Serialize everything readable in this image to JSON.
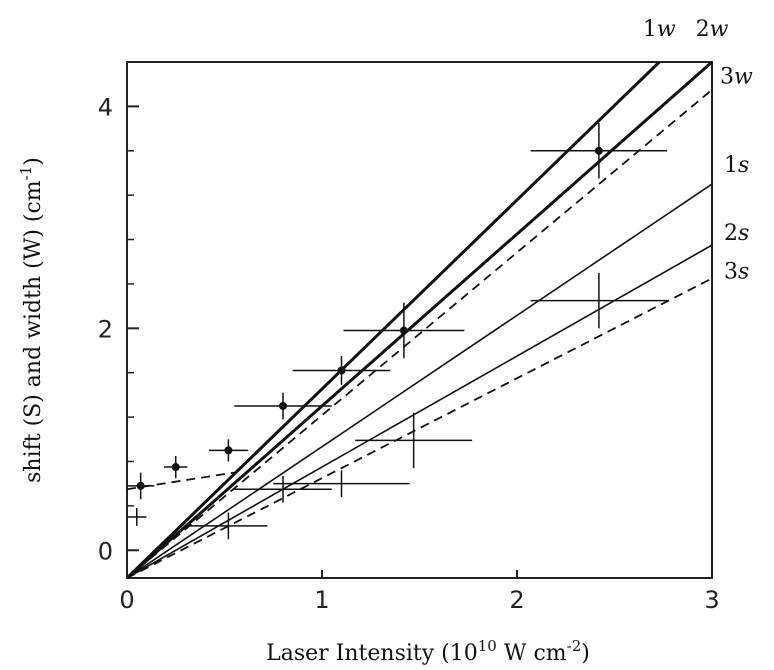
{
  "chart_data": {
    "type": "line",
    "xlabel": "Laser Intensity (10",
    "xlabel_exp": "10",
    "xlabel_tail": " W cm",
    "xlabel_tail_exp": "-2",
    "xlabel_close": ")",
    "ylabel": "shift  (S) and width (W)  (cm",
    "ylabel_exp": "-1",
    "ylabel_close": ")",
    "xlim": [
      0,
      3
    ],
    "ylim": [
      -0.25,
      4.4
    ],
    "x_ticks": [
      0,
      1,
      2,
      3
    ],
    "x_tick_labels": [
      "0",
      "1",
      "2",
      "3"
    ],
    "y_ticks": [
      0,
      2,
      4
    ],
    "y_tick_labels": [
      "0",
      "2",
      "4"
    ],
    "y_minor_ticks": [
      0.4,
      0.8,
      1.2,
      1.6,
      2.4,
      2.8,
      3.2,
      3.6
    ],
    "grid": false,
    "series": [
      {
        "name": "1w",
        "style": "thick-solid",
        "x": [
          0,
          2.73
        ],
        "y": [
          -0.25,
          4.4
        ]
      },
      {
        "name": "2w",
        "style": "thick-solid",
        "x": [
          0,
          3.0
        ],
        "y": [
          -0.25,
          4.4
        ]
      },
      {
        "name": "3w",
        "style": "dashed",
        "x": [
          0,
          3.0
        ],
        "y": [
          -0.25,
          4.15
        ]
      },
      {
        "name": "1s",
        "style": "thin-solid",
        "x": [
          0,
          3.0
        ],
        "y": [
          -0.25,
          3.3
        ]
      },
      {
        "name": "2s",
        "style": "thin-solid",
        "x": [
          0,
          3.0
        ],
        "y": [
          -0.25,
          2.75
        ]
      },
      {
        "name": "3s",
        "style": "dashed",
        "x": [
          0,
          3.0
        ],
        "y": [
          -0.25,
          2.45
        ]
      },
      {
        "name": "",
        "style": "dashed",
        "x": [
          0,
          0.55
        ],
        "y": [
          0.55,
          0.7
        ]
      }
    ],
    "points": [
      {
        "x": 0.07,
        "y": 0.58,
        "xerr": 0.07,
        "yerr": 0.12,
        "filled": true
      },
      {
        "x": 0.25,
        "y": 0.75,
        "xerr": 0.06,
        "yerr": 0.1,
        "filled": true
      },
      {
        "x": 0.52,
        "y": 0.9,
        "xerr": 0.1,
        "yerr": 0.1,
        "filled": true
      },
      {
        "x": 0.8,
        "y": 1.3,
        "xerr": 0.25,
        "yerr": 0.12,
        "filled": true
      },
      {
        "x": 1.1,
        "y": 1.62,
        "xerr": 0.25,
        "yerr": 0.13,
        "filled": true
      },
      {
        "x": 1.42,
        "y": 1.98,
        "xerr": 0.31,
        "yerr": 0.25,
        "filled": true
      },
      {
        "x": 2.42,
        "y": 3.6,
        "xerr": 0.35,
        "yerr": 0.25,
        "filled": true
      },
      {
        "x": 0.52,
        "y": 0.22,
        "xerr": 0.2,
        "yerr": 0.12,
        "filled": false
      },
      {
        "x": 0.8,
        "y": 0.55,
        "xerr": 0.25,
        "yerr": 0.12,
        "filled": false
      },
      {
        "x": 1.1,
        "y": 0.6,
        "xerr": 0.35,
        "yerr": 0.12,
        "filled": false
      },
      {
        "x": 1.47,
        "y": 0.99,
        "xerr": 0.3,
        "yerr": 0.25,
        "filled": false
      },
      {
        "x": 2.42,
        "y": 2.25,
        "xerr": 0.35,
        "yerr": 0.25,
        "filled": false
      },
      {
        "x": 0.05,
        "y": 0.3,
        "xerr": 0.05,
        "yerr": 0.08,
        "filled": false
      }
    ],
    "line_labels": [
      {
        "text": "1w",
        "series": "1w"
      },
      {
        "text": "2w",
        "series": "2w"
      },
      {
        "text": "3w",
        "series": "3w"
      },
      {
        "text": "1s",
        "series": "1s"
      },
      {
        "text": "2s",
        "series": "2s"
      },
      {
        "text": "3s",
        "series": "3s"
      }
    ]
  }
}
